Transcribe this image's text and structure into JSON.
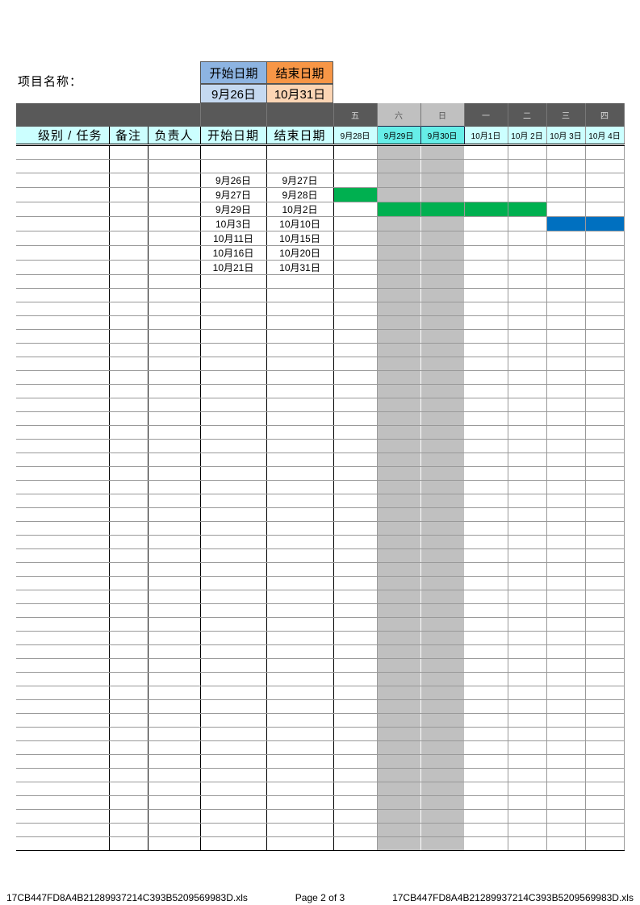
{
  "project": {
    "name_label": "项目名称："
  },
  "summary": {
    "start_label": "开始日期",
    "end_label": "结束日期",
    "start_value": "9月26日",
    "end_value": "10月31日",
    "start_color": "#8db4e2",
    "end_color": "#f79646"
  },
  "columns": [
    "级别 / 任务",
    "备注",
    "负责人",
    "开始日期",
    "结束日期"
  ],
  "days": [
    {
      "weekday": "五",
      "date": "9月28日",
      "weekend": false
    },
    {
      "weekday": "六",
      "date": "9月29日",
      "weekend": true
    },
    {
      "weekday": "日",
      "date": "9月30日",
      "weekend": true
    },
    {
      "weekday": "一",
      "date": "10月1日",
      "weekend": false
    },
    {
      "weekday": "二",
      "date": "10月 2日",
      "weekend": false
    },
    {
      "weekday": "三",
      "date": "10月 3日",
      "weekend": false
    },
    {
      "weekday": "四",
      "date": "10月 4日",
      "weekend": false
    }
  ],
  "rows": [
    {
      "start": "",
      "end": "",
      "bar": null
    },
    {
      "start": "",
      "end": "",
      "bar": null
    },
    {
      "start": "9月26日",
      "end": "9月27日",
      "bar": null
    },
    {
      "start": "9月27日",
      "end": "9月28日",
      "bar": {
        "color": "green",
        "days": [
          0
        ]
      }
    },
    {
      "start": "9月29日",
      "end": "10月2日",
      "bar": {
        "color": "green",
        "days": [
          1,
          2,
          3,
          4
        ]
      }
    },
    {
      "start": "10月3日",
      "end": "10月10日",
      "bar": {
        "color": "blue",
        "days": [
          5,
          6
        ]
      }
    },
    {
      "start": "10月11日",
      "end": "10月15日",
      "bar": null
    },
    {
      "start": "10月16日",
      "end": "10月20日",
      "bar": null
    },
    {
      "start": "10月21日",
      "end": "10月31日",
      "bar": null
    }
  ],
  "bar_colors": {
    "green": "#00b050",
    "blue": "#0070c0"
  },
  "footer": {
    "left": "17CB447FD8A4B21289937214C393B5209569983D.xls",
    "center": "Page 2 of 3",
    "right": "17CB447FD8A4B21289937214C393B5209569983D.xls"
  }
}
